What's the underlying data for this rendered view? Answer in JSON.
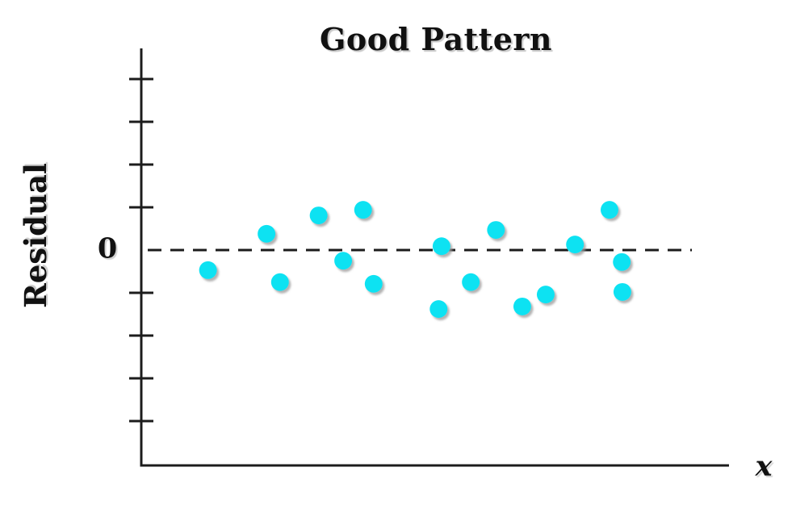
{
  "chart_data": {
    "type": "scatter",
    "title": "Good Pattern",
    "xlabel": "x",
    "ylabel": "Residual",
    "zero_label": "0",
    "xlim": [
      0,
      10
    ],
    "ylim": [
      -4.8,
      4.8
    ],
    "y_ticks": [
      4,
      3,
      2,
      1,
      -1,
      -2,
      -3,
      -4
    ],
    "zero_line": true,
    "zero_line_style": "dashed",
    "grid": false,
    "legend": "none",
    "colors": {
      "point_fill": "#0ee2f2",
      "point_shadow": "#9a9a9a",
      "axis": "#1c1c1c",
      "zero_line": "#1c1c1c"
    },
    "points": [
      {
        "x": 1.14,
        "residual": -0.47
      },
      {
        "x": 2.14,
        "residual": 0.38
      },
      {
        "x": 2.37,
        "residual": -0.75
      },
      {
        "x": 3.03,
        "residual": 0.81
      },
      {
        "x": 3.45,
        "residual": -0.25
      },
      {
        "x": 3.79,
        "residual": 0.94
      },
      {
        "x": 3.97,
        "residual": -0.79
      },
      {
        "x": 5.08,
        "residual": -1.38
      },
      {
        "x": 5.13,
        "residual": 0.09
      },
      {
        "x": 5.63,
        "residual": -0.75
      },
      {
        "x": 6.06,
        "residual": 0.47
      },
      {
        "x": 6.51,
        "residual": -1.32
      },
      {
        "x": 6.91,
        "residual": -1.04
      },
      {
        "x": 7.41,
        "residual": 0.13
      },
      {
        "x": 8.0,
        "residual": 0.94
      },
      {
        "x": 8.21,
        "residual": -0.28
      },
      {
        "x": 8.22,
        "residual": -0.98
      }
    ]
  }
}
